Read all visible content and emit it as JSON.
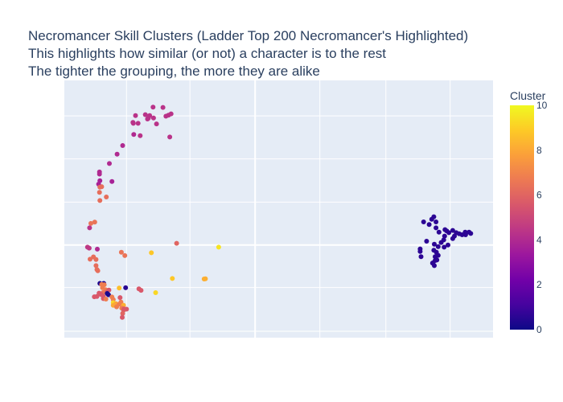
{
  "title": {
    "line1": "Necromancer Skill Clusters (Ladder Top 200 Necromancer's Highlighted)",
    "line2": "This highlights how similar (or not) a character is to the rest",
    "line3": "The tighter the grouping, the more they are alike"
  },
  "chart_data": {
    "type": "scatter",
    "title": "Necromancer Skill Clusters (Ladder Top 200 Necromancer's Highlighted)",
    "xlabel": "",
    "ylabel": "",
    "xlim": [
      0,
      100
    ],
    "ylim": [
      0,
      100
    ],
    "grid": true,
    "colorbar": {
      "title": "Cluster",
      "min": 0,
      "max": 10,
      "ticks": [
        "0",
        "2",
        "4",
        "6",
        "8",
        "10"
      ],
      "colorscale": [
        "#0d0887",
        "#46039f",
        "#7201a8",
        "#9c179e",
        "#bd3786",
        "#d8576b",
        "#ed7953",
        "#fb9f3a",
        "#fdca26",
        "#f0f921"
      ]
    },
    "points": [
      [
        23.7,
        86.1,
        4.3
      ],
      [
        24.3,
        86.5,
        4.3
      ],
      [
        24.9,
        87.0,
        4.3
      ],
      [
        20.7,
        89.6,
        4.3
      ],
      [
        23.0,
        89.5,
        4.3
      ],
      [
        17.2,
        83.3,
        4.3
      ],
      [
        16.6,
        86.3,
        4.3
      ],
      [
        16.1,
        83.3,
        4.3
      ],
      [
        16.0,
        83.7,
        4.3
      ],
      [
        18.9,
        86.7,
        4.3
      ],
      [
        19.9,
        86.3,
        4.3
      ],
      [
        20.8,
        85.4,
        4.3
      ],
      [
        19.6,
        85.3,
        4.3
      ],
      [
        19.4,
        85.0,
        4.3
      ],
      [
        21.5,
        83.1,
        4.3
      ],
      [
        24.6,
        78.0,
        4.3
      ],
      [
        17.7,
        78.5,
        4.3
      ],
      [
        16.2,
        79.0,
        4.0
      ],
      [
        13.6,
        74.7,
        4.0
      ],
      [
        12.3,
        71.3,
        4.0
      ],
      [
        10.5,
        67.7,
        4.0
      ],
      [
        8.2,
        63.6,
        4.0
      ],
      [
        8.2,
        64.4,
        4.0
      ],
      [
        11.1,
        60.7,
        3.7
      ],
      [
        8.3,
        61.0,
        3.7
      ],
      [
        8.0,
        59.7,
        3.7
      ],
      [
        8.7,
        58.7,
        6.3
      ],
      [
        8.3,
        58.5,
        6.3
      ],
      [
        8.2,
        56.5,
        6.3
      ],
      [
        8.3,
        53.3,
        6.3
      ],
      [
        9.8,
        54.7,
        6.3
      ],
      [
        6.2,
        44.4,
        6.5
      ],
      [
        7.1,
        44.9,
        6.5
      ],
      [
        5.9,
        42.7,
        4.3
      ],
      [
        5.8,
        34.8,
        4.5
      ],
      [
        5.4,
        35.2,
        4.5
      ],
      [
        7.7,
        34.4,
        4.0
      ],
      [
        13.3,
        33.2,
        6.5
      ],
      [
        14.1,
        31.9,
        6.5
      ],
      [
        20.3,
        33.0,
        8.8
      ],
      [
        26.2,
        36.7,
        6.0
      ],
      [
        36.0,
        35.2,
        9.5
      ],
      [
        25.2,
        23.0,
        8.8
      ],
      [
        32.6,
        22.8,
        8.2
      ],
      [
        32.9,
        22.9,
        8.2
      ],
      [
        12.8,
        19.3,
        8.6
      ],
      [
        14.3,
        19.4,
        0.5
      ],
      [
        17.4,
        19.0,
        5.6
      ],
      [
        17.9,
        18.4,
        5.6
      ],
      [
        21.3,
        17.5,
        9.2
      ],
      [
        6.8,
        31.4,
        6.3
      ],
      [
        6.0,
        30.5,
        6.3
      ],
      [
        7.4,
        30.4,
        6.3
      ],
      [
        7.4,
        28.0,
        6.3
      ],
      [
        7.6,
        26.5,
        6.3
      ],
      [
        7.8,
        26.0,
        6.3
      ],
      [
        8.3,
        21.1,
        0.3
      ],
      [
        9.2,
        21.1,
        0.3
      ],
      [
        8.7,
        20.7,
        6.8
      ],
      [
        9.3,
        20.6,
        6.8
      ],
      [
        8.9,
        19.4,
        6.8
      ],
      [
        9.6,
        18.7,
        6.8
      ],
      [
        10.4,
        18.5,
        5.6
      ],
      [
        10.0,
        17.8,
        5.6
      ],
      [
        9.0,
        17.5,
        6.5
      ],
      [
        8.1,
        17.3,
        5.6
      ],
      [
        8.4,
        16.9,
        5.6
      ],
      [
        10.3,
        16.7,
        0.3
      ],
      [
        10.0,
        17.2,
        0.3
      ],
      [
        8.6,
        16.8,
        5.6
      ],
      [
        9.1,
        16.0,
        5.6
      ],
      [
        9.1,
        15.2,
        5.6
      ],
      [
        7.6,
        16.0,
        5.6
      ],
      [
        7.0,
        15.9,
        5.6
      ],
      [
        9.7,
        15.0,
        6.8
      ],
      [
        11.1,
        15.8,
        6.8
      ],
      [
        11.4,
        14.8,
        6.8
      ],
      [
        11.4,
        13.6,
        9.2
      ],
      [
        12.0,
        13.2,
        7.9
      ],
      [
        12.8,
        13.0,
        6.8
      ],
      [
        13.2,
        13.8,
        6.8
      ],
      [
        11.4,
        12.6,
        8.0
      ],
      [
        12.2,
        12.0,
        6.8
      ],
      [
        13.8,
        12.6,
        8.2
      ],
      [
        13.4,
        11.5,
        6.8
      ],
      [
        14.0,
        11.0,
        5.6
      ],
      [
        14.5,
        11.1,
        5.6
      ],
      [
        13.0,
        15.6,
        5.6
      ],
      [
        13.8,
        10.7,
        6.0
      ],
      [
        13.6,
        9.4,
        6.0
      ],
      [
        13.5,
        7.9,
        5.6
      ],
      [
        13.9,
        11.2,
        5.6
      ],
      [
        86.2,
        47.0,
        0.6
      ],
      [
        85.7,
        46.0,
        0.6
      ],
      [
        86.7,
        45.0,
        0.6
      ],
      [
        83.8,
        45.0,
        0.6
      ],
      [
        85.1,
        44.0,
        0.6
      ],
      [
        86.7,
        42.7,
        0.6
      ],
      [
        88.8,
        42.0,
        0.6
      ],
      [
        89.2,
        41.5,
        0.6
      ],
      [
        90.6,
        41.7,
        0.6
      ],
      [
        91.4,
        40.8,
        0.6
      ],
      [
        93.5,
        41.0,
        0.6
      ],
      [
        94.4,
        41.0,
        0.6
      ],
      [
        93.6,
        40.0,
        0.6
      ],
      [
        94.8,
        40.5,
        0.6
      ],
      [
        92.1,
        40.4,
        0.6
      ],
      [
        91.0,
        39.5,
        0.6
      ],
      [
        90.6,
        38.5,
        0.6
      ],
      [
        88.7,
        39.5,
        0.6
      ],
      [
        88.5,
        38.0,
        0.6
      ],
      [
        87.9,
        37.0,
        0.6
      ],
      [
        84.5,
        37.5,
        0.6
      ],
      [
        86.3,
        36.3,
        0.6
      ],
      [
        87.2,
        35.4,
        0.6
      ],
      [
        88.6,
        35.2,
        0.6
      ],
      [
        89.5,
        36.0,
        0.6
      ],
      [
        86.8,
        33.2,
        0.6
      ],
      [
        86.5,
        31.5,
        0.6
      ],
      [
        86.9,
        30.2,
        0.6
      ],
      [
        86.0,
        29.1,
        0.6
      ],
      [
        86.3,
        28.0,
        0.6
      ],
      [
        83.0,
        34.5,
        0.6
      ],
      [
        83.0,
        33.5,
        0.6
      ],
      [
        83.2,
        31.5,
        0.6
      ],
      [
        87.2,
        32.0,
        0.6
      ],
      [
        86.5,
        30.0,
        0.6
      ],
      [
        85.9,
        29.0,
        0.6
      ],
      [
        86.2,
        34.0,
        0.6
      ],
      [
        87.4,
        41.0,
        0.6
      ],
      [
        89.7,
        40.8,
        0.6
      ],
      [
        92.8,
        40.0,
        0.6
      ]
    ]
  }
}
